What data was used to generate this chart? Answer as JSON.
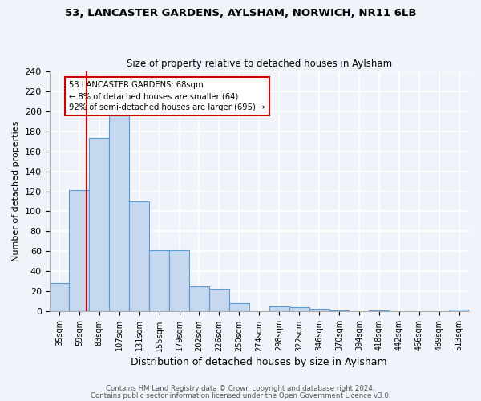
{
  "title1": "53, LANCASTER GARDENS, AYLSHAM, NORWICH, NR11 6LB",
  "title2": "Size of property relative to detached houses in Aylsham",
  "xlabel": "Distribution of detached houses by size in Aylsham",
  "ylabel": "Number of detached properties",
  "bin_labels": [
    "35sqm",
    "59sqm",
    "83sqm",
    "107sqm",
    "131sqm",
    "155sqm",
    "179sqm",
    "202sqm",
    "226sqm",
    "250sqm",
    "274sqm",
    "298sqm",
    "322sqm",
    "346sqm",
    "370sqm",
    "394sqm",
    "418sqm",
    "442sqm",
    "466sqm",
    "489sqm",
    "513sqm"
  ],
  "bin_values": [
    28,
    121,
    173,
    198,
    110,
    61,
    61,
    25,
    23,
    8,
    0,
    5,
    4,
    3,
    1,
    0,
    1,
    0,
    0,
    0,
    2
  ],
  "bar_color": "#c5d8f0",
  "bar_edge_color": "#5b9bd5",
  "vline_x": 1.375,
  "vline_color": "#cc0000",
  "annotation_text": "53 LANCASTER GARDENS: 68sqm\n← 8% of detached houses are smaller (64)\n92% of semi-detached houses are larger (695) →",
  "annotation_box_color": "white",
  "annotation_box_edge": "#cc0000",
  "ylim": [
    0,
    240
  ],
  "yticks": [
    0,
    20,
    40,
    60,
    80,
    100,
    120,
    140,
    160,
    180,
    200,
    220,
    240
  ],
  "footer1": "Contains HM Land Registry data © Crown copyright and database right 2024.",
  "footer2": "Contains public sector information licensed under the Open Government Licence v3.0.",
  "bg_color": "#f0f4fa",
  "grid_color": "white"
}
